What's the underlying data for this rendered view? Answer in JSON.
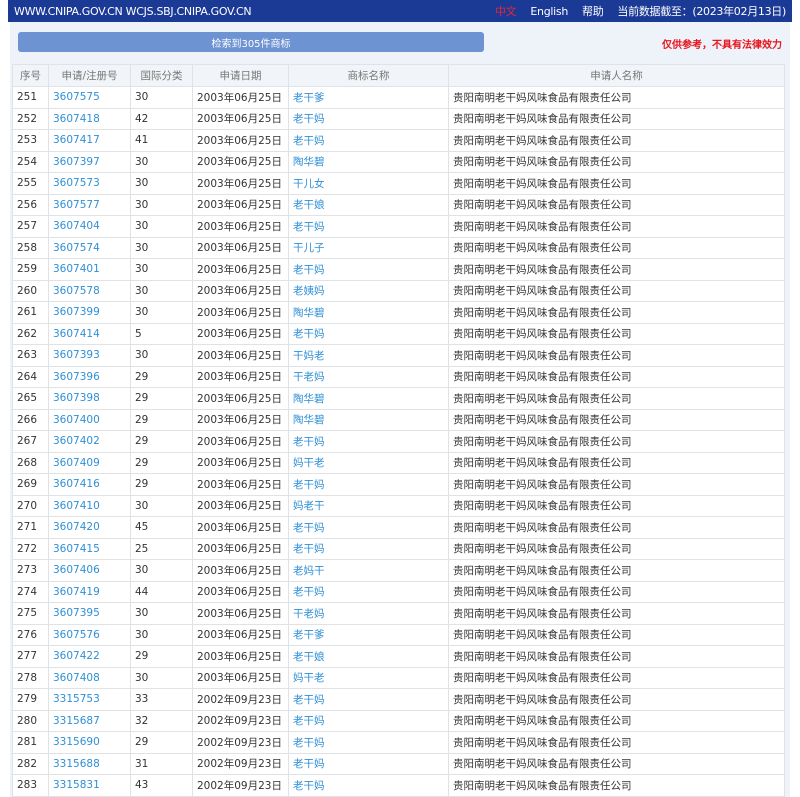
{
  "topbar": {
    "site": "WWW.CNIPA.GOV.CN WCJS.SBJ.CNIPA.GOV.CN",
    "lang_cn": "中文",
    "lang_en": "English",
    "help": "帮助",
    "data_date": "当前数据截至：(2023年02月13日)"
  },
  "search": {
    "result_count": "检索到305件商标",
    "disclaimer": "仅供参考，不具有法律效力"
  },
  "table": {
    "headers": [
      "序号",
      "申请/注册号",
      "国际分类",
      "申请日期",
      "商标名称",
      "申请人名称"
    ],
    "rows": [
      [
        "251",
        "3607575",
        "30",
        "2003年06月25日",
        "老干爹",
        "贵阳南明老干妈风味食品有限责任公司"
      ],
      [
        "252",
        "3607418",
        "42",
        "2003年06月25日",
        "老干妈",
        "贵阳南明老干妈风味食品有限责任公司"
      ],
      [
        "253",
        "3607417",
        "41",
        "2003年06月25日",
        "老干妈",
        "贵阳南明老干妈风味食品有限责任公司"
      ],
      [
        "254",
        "3607397",
        "30",
        "2003年06月25日",
        "陶华碧",
        "贵阳南明老干妈风味食品有限责任公司"
      ],
      [
        "255",
        "3607573",
        "30",
        "2003年06月25日",
        "干儿女",
        "贵阳南明老干妈风味食品有限责任公司"
      ],
      [
        "256",
        "3607577",
        "30",
        "2003年06月25日",
        "老干娘",
        "贵阳南明老干妈风味食品有限责任公司"
      ],
      [
        "257",
        "3607404",
        "30",
        "2003年06月25日",
        "老干妈",
        "贵阳南明老干妈风味食品有限责任公司"
      ],
      [
        "258",
        "3607574",
        "30",
        "2003年06月25日",
        "干儿子",
        "贵阳南明老干妈风味食品有限责任公司"
      ],
      [
        "259",
        "3607401",
        "30",
        "2003年06月25日",
        "老干妈",
        "贵阳南明老干妈风味食品有限责任公司"
      ],
      [
        "260",
        "3607578",
        "30",
        "2003年06月25日",
        "老姨妈",
        "贵阳南明老干妈风味食品有限责任公司"
      ],
      [
        "261",
        "3607399",
        "30",
        "2003年06月25日",
        "陶华碧",
        "贵阳南明老干妈风味食品有限责任公司"
      ],
      [
        "262",
        "3607414",
        "5",
        "2003年06月25日",
        "老干妈",
        "贵阳南明老干妈风味食品有限责任公司"
      ],
      [
        "263",
        "3607393",
        "30",
        "2003年06月25日",
        "干妈老",
        "贵阳南明老干妈风味食品有限责任公司"
      ],
      [
        "264",
        "3607396",
        "29",
        "2003年06月25日",
        "干老妈",
        "贵阳南明老干妈风味食品有限责任公司"
      ],
      [
        "265",
        "3607398",
        "29",
        "2003年06月25日",
        "陶华碧",
        "贵阳南明老干妈风味食品有限责任公司"
      ],
      [
        "266",
        "3607400",
        "29",
        "2003年06月25日",
        "陶华碧",
        "贵阳南明老干妈风味食品有限责任公司"
      ],
      [
        "267",
        "3607402",
        "29",
        "2003年06月25日",
        "老干妈",
        "贵阳南明老干妈风味食品有限责任公司"
      ],
      [
        "268",
        "3607409",
        "29",
        "2003年06月25日",
        "妈干老",
        "贵阳南明老干妈风味食品有限责任公司"
      ],
      [
        "269",
        "3607416",
        "29",
        "2003年06月25日",
        "老干妈",
        "贵阳南明老干妈风味食品有限责任公司"
      ],
      [
        "270",
        "3607410",
        "30",
        "2003年06月25日",
        "妈老干",
        "贵阳南明老干妈风味食品有限责任公司"
      ],
      [
        "271",
        "3607420",
        "45",
        "2003年06月25日",
        "老干妈",
        "贵阳南明老干妈风味食品有限责任公司"
      ],
      [
        "272",
        "3607415",
        "25",
        "2003年06月25日",
        "老干妈",
        "贵阳南明老干妈风味食品有限责任公司"
      ],
      [
        "273",
        "3607406",
        "30",
        "2003年06月25日",
        "老妈干",
        "贵阳南明老干妈风味食品有限责任公司"
      ],
      [
        "274",
        "3607419",
        "44",
        "2003年06月25日",
        "老干妈",
        "贵阳南明老干妈风味食品有限责任公司"
      ],
      [
        "275",
        "3607395",
        "30",
        "2003年06月25日",
        "干老妈",
        "贵阳南明老干妈风味食品有限责任公司"
      ],
      [
        "276",
        "3607576",
        "30",
        "2003年06月25日",
        "老干爹",
        "贵阳南明老干妈风味食品有限责任公司"
      ],
      [
        "277",
        "3607422",
        "29",
        "2003年06月25日",
        "老干娘",
        "贵阳南明老干妈风味食品有限责任公司"
      ],
      [
        "278",
        "3607408",
        "30",
        "2003年06月25日",
        "妈干老",
        "贵阳南明老干妈风味食品有限责任公司"
      ],
      [
        "279",
        "3315753",
        "33",
        "2002年09月23日",
        "老干妈",
        "贵阳南明老干妈风味食品有限责任公司"
      ],
      [
        "280",
        "3315687",
        "32",
        "2002年09月23日",
        "老干妈",
        "贵阳南明老干妈风味食品有限责任公司"
      ],
      [
        "281",
        "3315690",
        "29",
        "2002年09月23日",
        "老干妈",
        "贵阳南明老干妈风味食品有限责任公司"
      ],
      [
        "282",
        "3315688",
        "31",
        "2002年09月23日",
        "老干妈",
        "贵阳南明老干妈风味食品有限责任公司"
      ],
      [
        "283",
        "3315831",
        "43",
        "2002年09月23日",
        "老干妈",
        "贵阳南明老干妈风味食品有限责任公司"
      ]
    ]
  }
}
